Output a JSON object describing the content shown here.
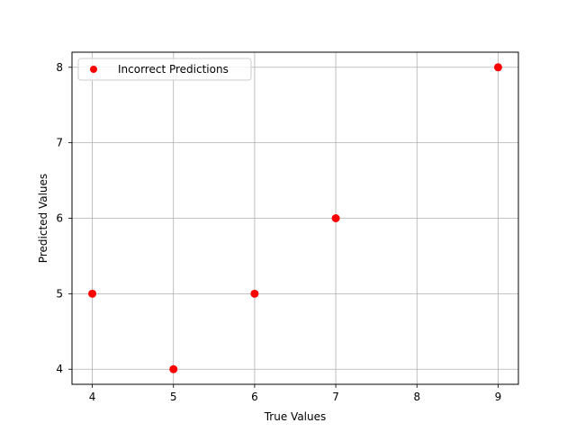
{
  "chart_data": {
    "type": "scatter",
    "title": "",
    "xlabel": "True Values",
    "ylabel": "Predicted Values",
    "xlim": [
      3.75,
      9.25
    ],
    "ylim": [
      3.8,
      8.2
    ],
    "xticks": [
      4,
      5,
      6,
      7,
      8,
      9
    ],
    "yticks": [
      4,
      5,
      6,
      7,
      8
    ],
    "grid": true,
    "legend_position": "top-left",
    "series": [
      {
        "name": "Incorrect Predictions",
        "color": "#ff0000",
        "points": [
          {
            "x": 4,
            "y": 5
          },
          {
            "x": 5,
            "y": 4
          },
          {
            "x": 6,
            "y": 5
          },
          {
            "x": 7,
            "y": 6
          },
          {
            "x": 9,
            "y": 8
          }
        ]
      }
    ]
  }
}
